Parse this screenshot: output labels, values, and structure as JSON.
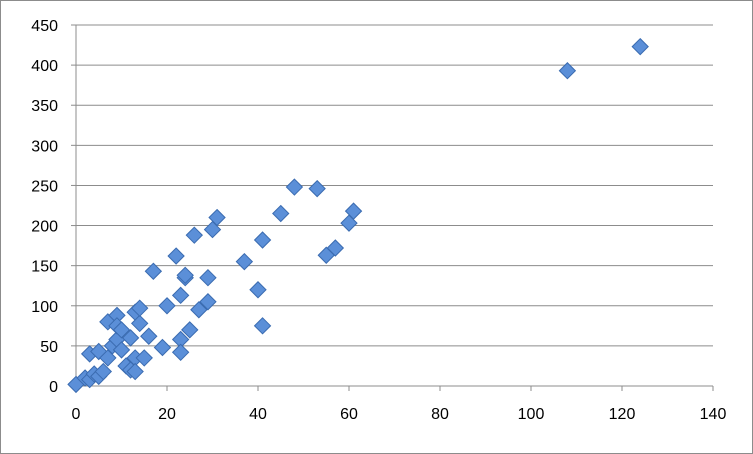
{
  "chart_data": {
    "type": "scatter",
    "title": "",
    "xlabel": "",
    "ylabel": "",
    "xlim": [
      0,
      140
    ],
    "ylim": [
      0,
      450
    ],
    "x_ticks": [
      "0",
      "20",
      "40",
      "60",
      "80",
      "100",
      "120",
      "140"
    ],
    "y_ticks": [
      "0",
      "50",
      "100",
      "150",
      "200",
      "250",
      "300",
      "350",
      "400",
      "450"
    ],
    "grid": "horizontal",
    "legend": "none",
    "marker": "diamond",
    "colors": {
      "marker_fill": "#5b8fd8",
      "marker_stroke": "#3a6bb0",
      "grid": "#8c8c8c"
    },
    "series": [
      {
        "points": [
          [
            0,
            2
          ],
          [
            2,
            10
          ],
          [
            3,
            8
          ],
          [
            3,
            40
          ],
          [
            4,
            15
          ],
          [
            5,
            12
          ],
          [
            5,
            43
          ],
          [
            6,
            18
          ],
          [
            7,
            35
          ],
          [
            7,
            80
          ],
          [
            8,
            50
          ],
          [
            9,
            58
          ],
          [
            9,
            88
          ],
          [
            9,
            75
          ],
          [
            10,
            70
          ],
          [
            10,
            45
          ],
          [
            11,
            25
          ],
          [
            12,
            20
          ],
          [
            12,
            60
          ],
          [
            13,
            92
          ],
          [
            13,
            35
          ],
          [
            13,
            18
          ],
          [
            14,
            78
          ],
          [
            14,
            97
          ],
          [
            15,
            35
          ],
          [
            16,
            62
          ],
          [
            17,
            143
          ],
          [
            19,
            48
          ],
          [
            20,
            100
          ],
          [
            22,
            162
          ],
          [
            23,
            113
          ],
          [
            23,
            58
          ],
          [
            23,
            42
          ],
          [
            24,
            135
          ],
          [
            24,
            138
          ],
          [
            25,
            70
          ],
          [
            26,
            188
          ],
          [
            27,
            95
          ],
          [
            29,
            105
          ],
          [
            29,
            135
          ],
          [
            30,
            195
          ],
          [
            31,
            210
          ],
          [
            37,
            155
          ],
          [
            40,
            120
          ],
          [
            41,
            182
          ],
          [
            41,
            75
          ],
          [
            45,
            215
          ],
          [
            48,
            248
          ],
          [
            53,
            246
          ],
          [
            55,
            163
          ],
          [
            57,
            172
          ],
          [
            60,
            203
          ],
          [
            61,
            218
          ],
          [
            108,
            393
          ],
          [
            124,
            423
          ]
        ]
      }
    ]
  }
}
